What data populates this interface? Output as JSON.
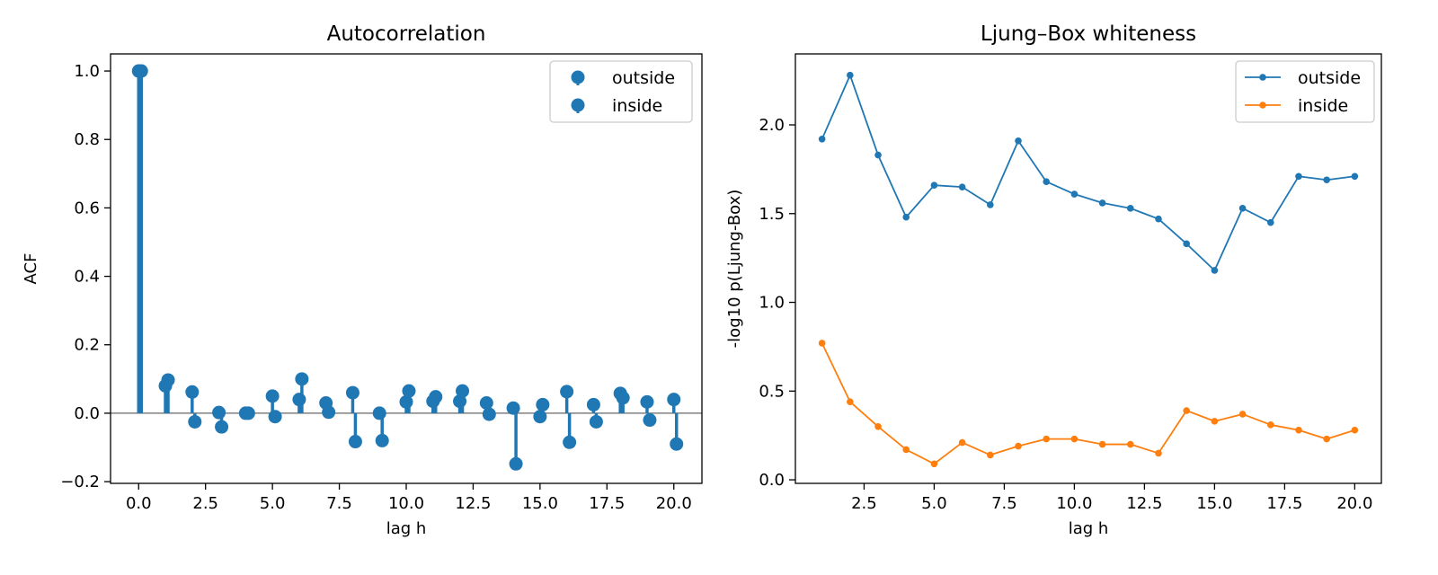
{
  "chart_data": [
    {
      "type": "stem",
      "title": "Autocorrelation",
      "xlabel": "lag h",
      "ylabel": "ACF",
      "xlim": [
        -1.05,
        21.05
      ],
      "ylim": [
        -0.205,
        1.05
      ],
      "xticks": [
        0.0,
        2.5,
        5.0,
        7.5,
        10.0,
        12.5,
        15.0,
        17.5,
        20.0
      ],
      "xtick_labels": [
        "0.0",
        "2.5",
        "5.0",
        "7.5",
        "10.0",
        "12.5",
        "15.0",
        "17.5",
        "20.0"
      ],
      "yticks": [
        -0.2,
        0.0,
        0.2,
        0.4,
        0.6,
        0.8,
        1.0
      ],
      "ytick_labels": [
        "−0.2",
        "0.0",
        "0.2",
        "0.4",
        "0.6",
        "0.8",
        "1.0"
      ],
      "baseline": 0.0,
      "legend_position": "top-right",
      "series": [
        {
          "name": "outside",
          "color": "#1f77b4",
          "x": [
            0,
            1,
            2,
            3,
            4,
            5,
            6,
            7,
            8,
            9,
            10,
            11,
            12,
            13,
            14,
            15,
            16,
            17,
            18,
            19,
            20
          ],
          "y": [
            1.0,
            0.08,
            0.062,
            0.002,
            0.0,
            0.05,
            0.04,
            0.03,
            0.06,
            0.0,
            0.033,
            0.035,
            0.035,
            0.03,
            0.015,
            -0.01,
            0.063,
            0.025,
            0.058,
            0.033,
            0.04
          ]
        },
        {
          "name": "inside",
          "color": "#1f77b4",
          "x": [
            0.1,
            1.1,
            2.1,
            3.1,
            4.1,
            5.1,
            6.1,
            7.1,
            8.1,
            9.1,
            10.1,
            11.1,
            12.1,
            13.1,
            14.1,
            15.1,
            16.1,
            17.1,
            18.1,
            19.1,
            20.1
          ],
          "y": [
            1.0,
            0.097,
            -0.025,
            -0.04,
            0.0,
            -0.01,
            0.1,
            0.003,
            -0.083,
            -0.08,
            0.065,
            0.048,
            0.065,
            -0.003,
            -0.148,
            0.025,
            -0.085,
            -0.025,
            0.045,
            -0.02,
            -0.09
          ]
        }
      ]
    },
    {
      "type": "line",
      "title": "Ljung–Box whiteness",
      "xlabel": "lag h",
      "ylabel": "-log10 p(Ljung-Box)",
      "xlim": [
        0.05,
        20.95
      ],
      "ylim": [
        -0.02,
        2.4
      ],
      "xticks": [
        2.5,
        5.0,
        7.5,
        10.0,
        12.5,
        15.0,
        17.5,
        20.0
      ],
      "xtick_labels": [
        "2.5",
        "5.0",
        "7.5",
        "10.0",
        "12.5",
        "15.0",
        "17.5",
        "20.0"
      ],
      "yticks": [
        0.0,
        0.5,
        1.0,
        1.5,
        2.0
      ],
      "ytick_labels": [
        "0.0",
        "0.5",
        "1.0",
        "1.5",
        "2.0"
      ],
      "legend_position": "top-right",
      "series": [
        {
          "name": "outside",
          "color": "#1f77b4",
          "x": [
            1,
            2,
            3,
            4,
            5,
            6,
            7,
            8,
            9,
            10,
            11,
            12,
            13,
            14,
            15,
            16,
            17,
            18,
            19,
            20
          ],
          "y": [
            1.92,
            2.28,
            1.83,
            1.48,
            1.66,
            1.65,
            1.55,
            1.91,
            1.68,
            1.61,
            1.56,
            1.53,
            1.47,
            1.33,
            1.18,
            1.53,
            1.45,
            1.71,
            1.69,
            1.71
          ]
        },
        {
          "name": "inside",
          "color": "#ff7f0e",
          "x": [
            1,
            2,
            3,
            4,
            5,
            6,
            7,
            8,
            9,
            10,
            11,
            12,
            13,
            14,
            15,
            16,
            17,
            18,
            19,
            20
          ],
          "y": [
            0.77,
            0.44,
            0.3,
            0.17,
            0.09,
            0.21,
            0.14,
            0.19,
            0.23,
            0.23,
            0.2,
            0.2,
            0.15,
            0.39,
            0.33,
            0.37,
            0.31,
            0.28,
            0.23,
            0.28
          ]
        }
      ]
    }
  ]
}
